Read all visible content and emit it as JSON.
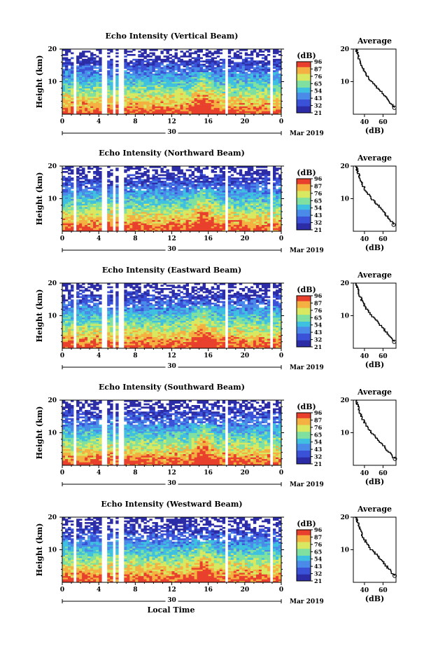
{
  "chart_data": {
    "type": "heatmap",
    "title_avg": "Average",
    "ylabel": "Height (km)",
    "xlabel": "Local Time",
    "date_center": "30",
    "date_label": "Mar 2019",
    "avg_xlabel": "(dB)",
    "cb_unit": "(dB)",
    "x_ticks": [
      "0",
      "4",
      "8",
      "12",
      "16",
      "20",
      "0"
    ],
    "y_ticks": [
      "20",
      "10"
    ],
    "avg_x_ticks": [
      "40",
      "60"
    ],
    "colorbar_levels": [
      "96",
      "87",
      "76",
      "65",
      "54",
      "43",
      "32",
      "21"
    ],
    "colormap": [
      "#2c2ca6",
      "#3b52d8",
      "#4a8ae8",
      "#3fc0e0",
      "#7fe0a0",
      "#d8e860",
      "#f4b040",
      "#e8402c"
    ],
    "ylim": [
      0,
      20
    ],
    "xlim_hours": [
      0,
      24
    ],
    "panels": [
      {
        "title": "Echo Intensity (Vertical Beam)",
        "cb_top_label": "96"
      },
      {
        "title": "Echo Intensity (Northward Beam)",
        "cb_top_label": "96"
      },
      {
        "title": "Echo Intensity (Eastward Beam)",
        "cb_top_label": "96"
      },
      {
        "title": "Echo Intensity (Southward Beam)",
        "cb_top_label": "96"
      },
      {
        "title": "Echo Intensity (Westward Beam)",
        "cb_top_label": "96"
      }
    ],
    "average_profile_db": [
      [
        2,
        72
      ],
      [
        4,
        66
      ],
      [
        6,
        60
      ],
      [
        8,
        54
      ],
      [
        10,
        47
      ],
      [
        12,
        42
      ],
      [
        14,
        38
      ],
      [
        16,
        35
      ],
      [
        18,
        33
      ],
      [
        19,
        32
      ],
      [
        20,
        31
      ]
    ],
    "avg_xlim": [
      28,
      74
    ]
  }
}
